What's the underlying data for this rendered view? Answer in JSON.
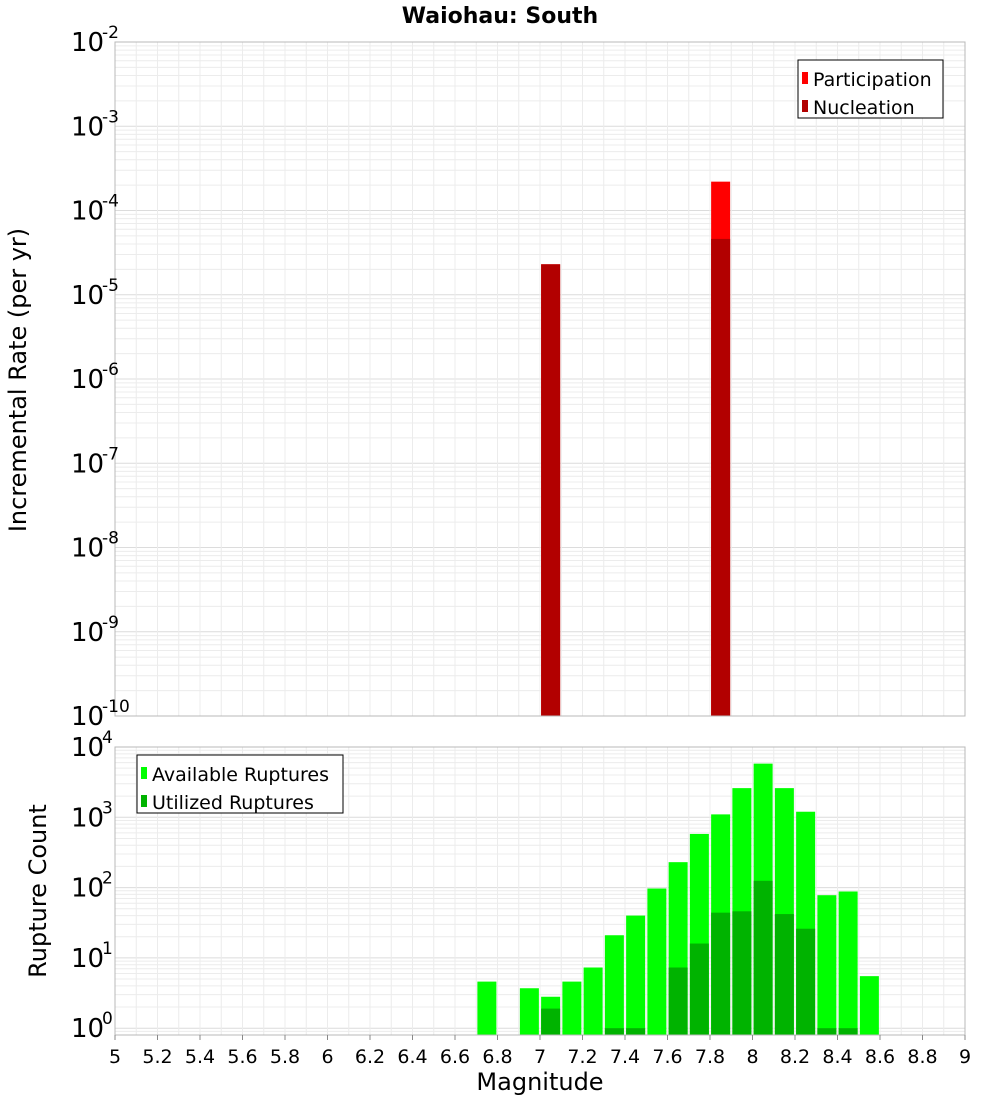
{
  "title": "Waiohau: South",
  "chart_data": [
    {
      "type": "bar",
      "scale_y": "log",
      "xlabel": "",
      "ylabel": "Incremental Rate (per yr)",
      "xlim": [
        5,
        9
      ],
      "ylim": [
        1e-10,
        0.01
      ],
      "grid": true,
      "legend_position": "top-right",
      "series": [
        {
          "name": "Participation",
          "color": "#ff0000",
          "x": [
            7.05,
            7.85
          ],
          "values": [
            2.3e-05,
            0.00022
          ]
        },
        {
          "name": "Nucleation",
          "color": "#b20000",
          "x": [
            7.05,
            7.85
          ],
          "values": [
            2.3e-05,
            4.6e-05
          ]
        }
      ],
      "yticks": [
        {
          "base": "10",
          "exp": "-10"
        },
        {
          "base": "10",
          "exp": "-9"
        },
        {
          "base": "10",
          "exp": "-8"
        },
        {
          "base": "10",
          "exp": "-7"
        },
        {
          "base": "10",
          "exp": "-6"
        },
        {
          "base": "10",
          "exp": "-5"
        },
        {
          "base": "10",
          "exp": "-4"
        },
        {
          "base": "10",
          "exp": "-3"
        },
        {
          "base": "10",
          "exp": "-2"
        }
      ]
    },
    {
      "type": "bar",
      "scale_y": "log",
      "xlabel": "Magnitude",
      "ylabel": "Rupture Count",
      "xlim": [
        5,
        9
      ],
      "ylim": [
        0.8,
        10000
      ],
      "grid": true,
      "legend_position": "top-left",
      "x": [
        6.75,
        6.95,
        7.05,
        7.15,
        7.25,
        7.35,
        7.45,
        7.55,
        7.65,
        7.75,
        7.85,
        7.95,
        8.05,
        8.15,
        8.25,
        8.35,
        8.45,
        8.55
      ],
      "series": [
        {
          "name": "Available Ruptures",
          "color": "#00ff00",
          "values": [
            4.6,
            3.7,
            2.8,
            4.6,
            7.3,
            21,
            40,
            97,
            230,
            580,
            1100,
            2600,
            5800,
            2600,
            1200,
            78,
            88,
            5.5
          ]
        },
        {
          "name": "Utilized Ruptures",
          "color": "#00b300",
          "values": [
            null,
            null,
            1.9,
            null,
            null,
            1,
            1,
            null,
            7.3,
            16,
            44,
            46,
            125,
            42,
            26,
            1,
            1,
            null
          ]
        }
      ],
      "yticks": [
        {
          "base": "10",
          "exp": "0"
        },
        {
          "base": "10",
          "exp": "1"
        },
        {
          "base": "10",
          "exp": "2"
        },
        {
          "base": "10",
          "exp": "3"
        },
        {
          "base": "10",
          "exp": "4"
        }
      ],
      "xticks": [
        "5",
        "5.2",
        "5.4",
        "5.6",
        "5.8",
        "6",
        "6.2",
        "6.4",
        "6.6",
        "6.8",
        "7",
        "7.2",
        "7.4",
        "7.6",
        "7.8",
        "8",
        "8.2",
        "8.4",
        "8.6",
        "8.8",
        "9"
      ]
    }
  ]
}
